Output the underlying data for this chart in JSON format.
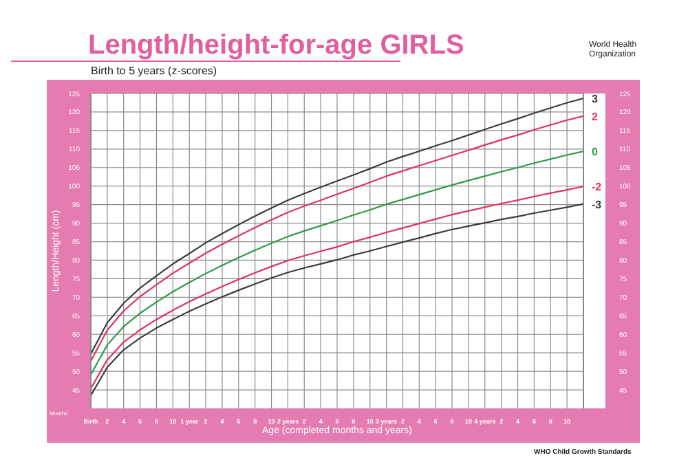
{
  "chart_data": {
    "type": "line",
    "title": "Length/height-for-age GIRLS",
    "subtitle": "Birth to 5 years (z-scores)",
    "xlabel": "Age (completed months and years)",
    "ylabel": "Length/Height (cm)",
    "annotations": [
      "Months",
      "World Health Organization",
      "WHO Child Growth Standards"
    ],
    "categories": [
      "Birth",
      "2",
      "4",
      "6",
      "8",
      "10",
      "1 year",
      "2",
      "4",
      "6",
      "8",
      "10",
      "2 years",
      "2",
      "4",
      "6",
      "8",
      "10",
      "3 years",
      "2",
      "4",
      "6",
      "8",
      "10",
      "4 years",
      "2",
      "4",
      "6",
      "8",
      "10",
      null
    ],
    "series": [
      {
        "name": "3",
        "color": "#3c3c3c",
        "values": [
          54.7,
          63.1,
          68.4,
          72.5,
          75.8,
          79.0,
          81.8,
          84.7,
          87.2,
          89.6,
          91.9,
          94.1,
          96.2,
          98.0,
          99.7,
          101.4,
          103.0,
          104.7,
          106.5,
          108.0,
          109.4,
          110.9,
          112.3,
          113.8,
          115.3,
          116.8,
          118.2,
          119.7,
          121.1,
          122.5,
          123.7
        ]
      },
      {
        "name": "2",
        "color": "#e0325e",
        "values": [
          52.8,
          61.1,
          66.3,
          70.2,
          73.4,
          76.5,
          79.2,
          81.9,
          84.3,
          86.6,
          88.8,
          90.9,
          92.9,
          94.6,
          96.2,
          97.8,
          99.4,
          101.0,
          102.7,
          104.1,
          105.5,
          106.9,
          108.3,
          109.7,
          111.1,
          112.5,
          113.8,
          115.2,
          116.5,
          117.8,
          118.9
        ]
      },
      {
        "name": "0",
        "color": "#2e9a4a",
        "values": [
          49.1,
          57.1,
          62.1,
          65.7,
          68.7,
          71.5,
          74.0,
          76.4,
          78.6,
          80.7,
          82.7,
          84.6,
          86.4,
          87.9,
          89.3,
          90.7,
          92.2,
          93.6,
          95.1,
          96.4,
          97.7,
          99.0,
          100.3,
          101.5,
          102.7,
          103.9,
          105.0,
          106.2,
          107.3,
          108.4,
          109.4
        ]
      },
      {
        "name": "-2",
        "color": "#e0325e",
        "values": [
          45.4,
          53.1,
          57.9,
          61.2,
          64.0,
          66.5,
          68.8,
          70.9,
          72.9,
          74.8,
          76.6,
          78.3,
          79.9,
          81.2,
          82.4,
          83.6,
          85.0,
          86.2,
          87.5,
          88.7,
          89.9,
          91.1,
          92.3,
          93.3,
          94.3,
          95.3,
          96.2,
          97.2,
          98.1,
          99.0,
          99.9
        ]
      },
      {
        "name": "-3",
        "color": "#3c3c3c",
        "values": [
          43.5,
          51.1,
          55.8,
          59.0,
          61.7,
          64.0,
          66.2,
          68.2,
          70.1,
          71.9,
          73.6,
          75.2,
          76.7,
          77.9,
          79.0,
          80.1,
          81.4,
          82.5,
          83.7,
          84.9,
          86.0,
          87.2,
          88.3,
          89.2,
          90.1,
          91.0,
          91.8,
          92.7,
          93.5,
          94.3,
          95.2
        ]
      }
    ],
    "ylim": [
      40,
      125
    ],
    "yticks": [
      45,
      50,
      55,
      60,
      65,
      70,
      75,
      80,
      85,
      90,
      95,
      100,
      105,
      110,
      115,
      120,
      125
    ],
    "y2lim": [
      40,
      125
    ],
    "y2ticks": [
      45,
      50,
      55,
      60,
      65,
      70,
      75,
      80,
      85,
      90,
      95,
      100,
      105,
      110,
      115,
      120,
      125
    ],
    "grid": true,
    "marker": "none",
    "line_style": "solid"
  }
}
